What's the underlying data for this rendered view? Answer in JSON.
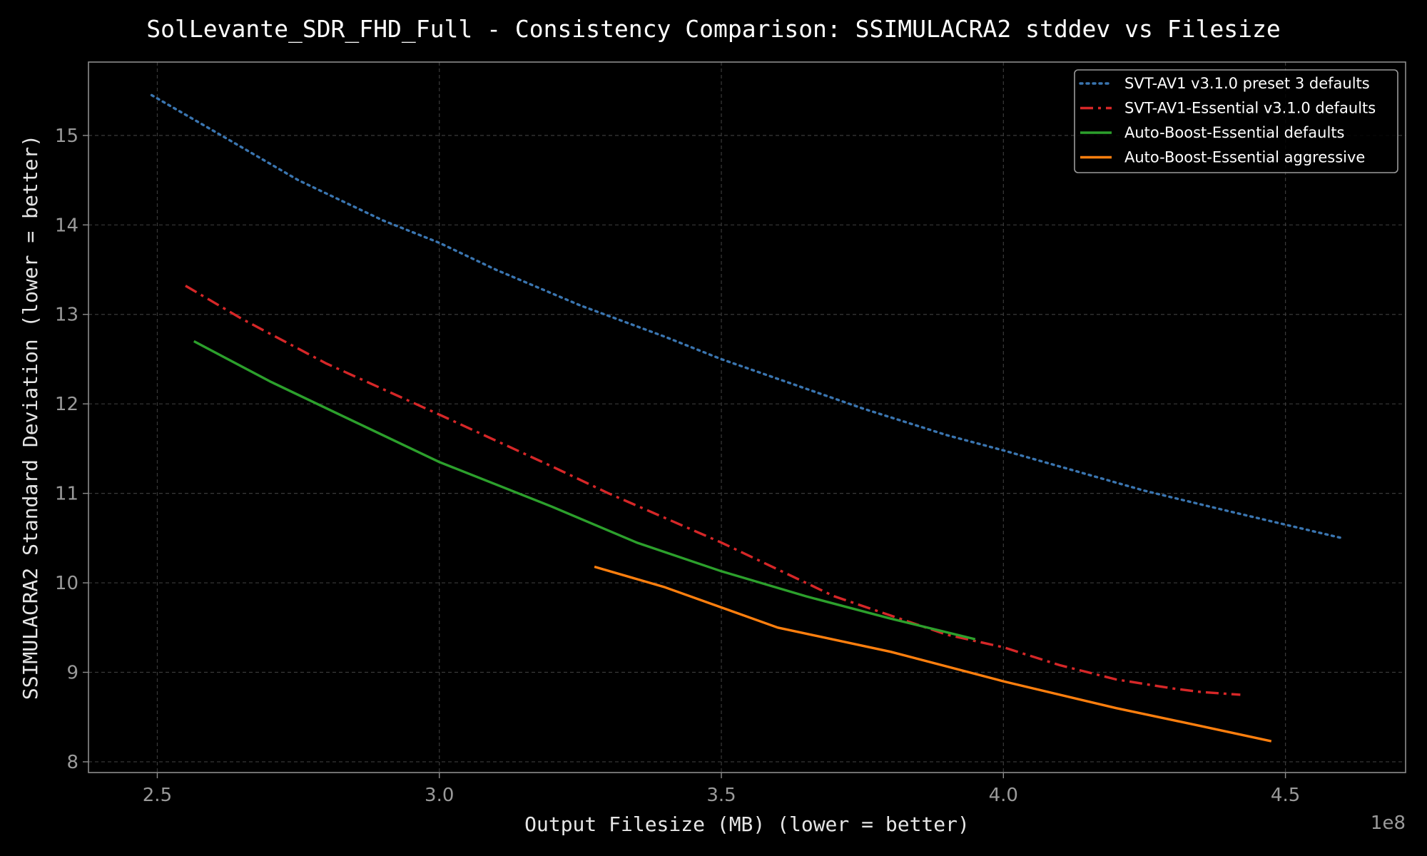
{
  "chart_data": {
    "type": "line",
    "title": "SolLevante_SDR_FHD_Full - Consistency Comparison: SSIMULACRA2 stddev vs Filesize",
    "xlabel": "Output Filesize (MB) (lower = better)",
    "ylabel": "SSIMULACRA2 Standard Deviation (lower = better)",
    "x_offset_label": "1e8",
    "xlim": [
      2.378,
      4.713
    ],
    "ylim": [
      7.88,
      15.82
    ],
    "x_ticks": [
      2.5,
      3.0,
      3.5,
      4.0,
      4.5
    ],
    "x_tick_labels": [
      "2.5",
      "3.0",
      "3.5",
      "4.0",
      "4.5"
    ],
    "y_ticks": [
      8,
      9,
      10,
      11,
      12,
      13,
      14,
      15
    ],
    "y_tick_labels": [
      "8",
      "9",
      "10",
      "11",
      "12",
      "13",
      "14",
      "15"
    ],
    "grid": true,
    "legend_position": "top-right",
    "series": [
      {
        "name": "SVT-AV1 v3.1.0 preset 3 defaults",
        "color": "#3a75b0",
        "style": "dotted",
        "x": [
          2.49,
          2.6,
          2.75,
          2.9,
          3.0,
          3.1,
          3.25,
          3.4,
          3.5,
          3.6,
          3.75,
          3.9,
          4.0,
          4.1,
          4.25,
          4.4,
          4.5,
          4.6
        ],
        "y": [
          15.45,
          15.05,
          14.5,
          14.05,
          13.8,
          13.5,
          13.1,
          12.75,
          12.5,
          12.28,
          11.95,
          11.65,
          11.48,
          11.3,
          11.03,
          10.8,
          10.65,
          10.5
        ]
      },
      {
        "name": "SVT-AV1-Essential v3.1.0 defaults",
        "color": "#d62728",
        "style": "dashdot",
        "x": [
          2.55,
          2.65,
          2.8,
          3.0,
          3.2,
          3.3,
          3.5,
          3.7,
          3.9,
          4.0,
          4.1,
          4.2,
          4.3,
          4.35,
          4.42
        ],
        "y": [
          13.32,
          12.95,
          12.45,
          11.88,
          11.3,
          11.0,
          10.45,
          9.85,
          9.42,
          9.28,
          9.08,
          8.92,
          8.82,
          8.78,
          8.75
        ]
      },
      {
        "name": "Auto-Boost-Essential defaults",
        "color": "#2ca02c",
        "style": "solid",
        "x": [
          2.565,
          2.7,
          2.85,
          3.0,
          3.2,
          3.35,
          3.5,
          3.65,
          3.8,
          3.95
        ],
        "y": [
          12.7,
          12.25,
          11.8,
          11.35,
          10.85,
          10.45,
          10.13,
          9.85,
          9.6,
          9.37
        ]
      },
      {
        "name": "Auto-Boost-Essential aggressive",
        "color": "#ff7f0e",
        "style": "solid",
        "x": [
          3.275,
          3.4,
          3.6,
          3.8,
          4.0,
          4.2,
          4.35,
          4.475
        ],
        "y": [
          10.18,
          9.95,
          9.5,
          9.23,
          8.9,
          8.6,
          8.4,
          8.23
        ]
      }
    ]
  }
}
